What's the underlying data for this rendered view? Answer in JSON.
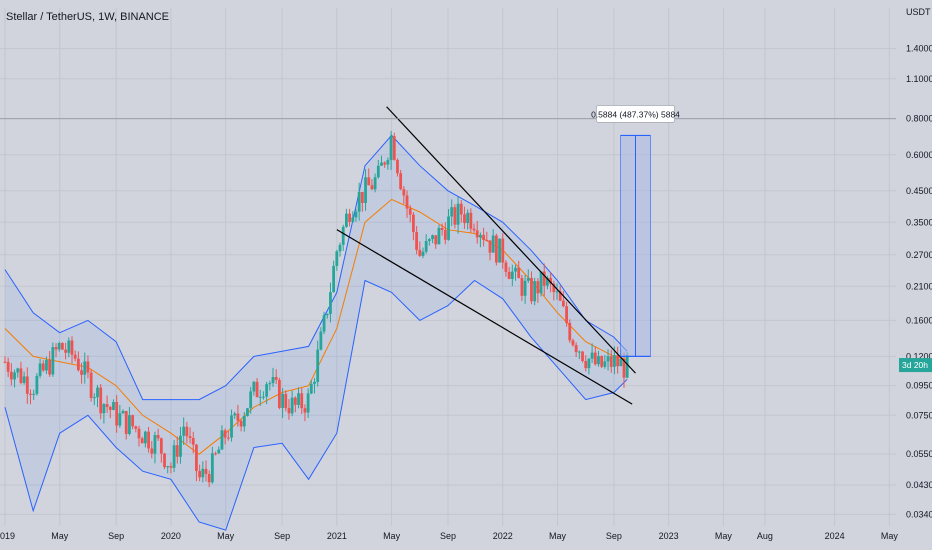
{
  "header": {
    "title": "Stellar / TetherUS, 1W, BINANCE"
  },
  "price_axis": {
    "unit": "USDT",
    "ticks": [
      "1.4000",
      "1.1000",
      "0.8000",
      "0.6000",
      "0.4500",
      "0.3500",
      "0.2700",
      "0.2100",
      "0.1600",
      "0.1200",
      "0.0950",
      "0.0750",
      "0.0550",
      "0.0430",
      "0.0340"
    ],
    "tick_values": [
      1.4,
      1.1,
      0.8,
      0.6,
      0.45,
      0.35,
      0.27,
      0.21,
      0.16,
      0.12,
      0.095,
      0.075,
      0.055,
      0.043,
      0.034
    ],
    "scale": "log",
    "countdown_label": "3d 20h"
  },
  "time_axis": {
    "labels": [
      "2019",
      "May",
      "Sep",
      "2020",
      "May",
      "Sep",
      "2021",
      "May",
      "Sep",
      "2022",
      "May",
      "Sep",
      "2023",
      "May",
      "Aug",
      "2024",
      "May"
    ],
    "values": [
      2019.0,
      2019.33,
      2019.67,
      2020.0,
      2020.33,
      2020.67,
      2021.0,
      2021.33,
      2021.67,
      2022.0,
      2022.33,
      2022.67,
      2023.0,
      2023.33,
      2023.58,
      2024.0,
      2024.33
    ]
  },
  "measure": {
    "label": "0.5884 (487.37%) 5884",
    "from_price": 0.12,
    "to_price": 0.7,
    "x": 2022.8
  },
  "colors": {
    "background": "#d1d4dc",
    "grid": "#c2c6cf",
    "up": "#26a69a",
    "down": "#ef5350",
    "band": "#2962ff",
    "ma": "#f57c00",
    "trend": "#000000",
    "measure_fill": "#aab8e6",
    "measure_line": "#2962ff"
  },
  "chart_data": {
    "type": "candlestick",
    "title": "Stellar / TetherUS, 1W, BINANCE",
    "ylabel": "USDT",
    "y_scale": "log",
    "ylim": [
      0.031,
      1.65
    ],
    "xlim": [
      2018.97,
      2024.37
    ],
    "series": [
      {
        "name": "XLM/USDT weekly close (approx)",
        "x": [
          2019.0,
          2019.08,
          2019.17,
          2019.25,
          2019.33,
          2019.42,
          2019.5,
          2019.58,
          2019.67,
          2019.75,
          2019.83,
          2019.92,
          2020.0,
          2020.08,
          2020.17,
          2020.25,
          2020.33,
          2020.42,
          2020.5,
          2020.58,
          2020.67,
          2020.75,
          2020.83,
          2020.92,
          2021.0,
          2021.08,
          2021.17,
          2021.25,
          2021.33,
          2021.42,
          2021.5,
          2021.58,
          2021.67,
          2021.75,
          2021.83,
          2021.92,
          2022.0,
          2022.08,
          2022.17,
          2022.25,
          2022.33,
          2022.42,
          2022.5,
          2022.58,
          2022.67,
          2022.75
        ],
        "close": [
          0.115,
          0.105,
          0.095,
          0.11,
          0.13,
          0.12,
          0.1,
          0.085,
          0.075,
          0.07,
          0.065,
          0.06,
          0.05,
          0.07,
          0.045,
          0.05,
          0.065,
          0.075,
          0.09,
          0.1,
          0.085,
          0.08,
          0.085,
          0.15,
          0.28,
          0.4,
          0.45,
          0.5,
          0.7,
          0.4,
          0.27,
          0.3,
          0.35,
          0.38,
          0.36,
          0.3,
          0.27,
          0.22,
          0.2,
          0.22,
          0.19,
          0.14,
          0.12,
          0.11,
          0.115,
          0.11
        ]
      },
      {
        "name": "Bollinger upper band (approx)",
        "x": [
          2019.0,
          2019.17,
          2019.33,
          2019.5,
          2019.67,
          2019.83,
          2020.0,
          2020.17,
          2020.33,
          2020.5,
          2020.67,
          2020.83,
          2021.0,
          2021.17,
          2021.33,
          2021.5,
          2021.67,
          2021.83,
          2022.0,
          2022.17,
          2022.33,
          2022.5,
          2022.67,
          2022.75
        ],
        "values": [
          0.24,
          0.17,
          0.145,
          0.16,
          0.135,
          0.085,
          0.085,
          0.085,
          0.095,
          0.12,
          0.125,
          0.13,
          0.2,
          0.55,
          0.7,
          0.55,
          0.45,
          0.4,
          0.35,
          0.28,
          0.22,
          0.16,
          0.14,
          0.125
        ]
      },
      {
        "name": "Moving average (approx)",
        "x": [
          2019.0,
          2019.17,
          2019.33,
          2019.5,
          2019.67,
          2019.83,
          2020.0,
          2020.17,
          2020.33,
          2020.5,
          2020.67,
          2020.83,
          2021.0,
          2021.17,
          2021.33,
          2021.5,
          2021.67,
          2021.83,
          2022.0,
          2022.17,
          2022.33,
          2022.5,
          2022.67,
          2022.75
        ],
        "values": [
          0.15,
          0.12,
          0.115,
          0.11,
          0.095,
          0.075,
          0.065,
          0.055,
          0.065,
          0.08,
          0.09,
          0.095,
          0.15,
          0.35,
          0.42,
          0.38,
          0.33,
          0.32,
          0.28,
          0.22,
          0.17,
          0.135,
          0.12,
          0.117
        ]
      },
      {
        "name": "Bollinger lower band (approx)",
        "x": [
          2019.0,
          2019.17,
          2019.33,
          2019.5,
          2019.67,
          2019.83,
          2020.0,
          2020.17,
          2020.33,
          2020.5,
          2020.67,
          2020.83,
          2021.0,
          2021.17,
          2021.33,
          2021.5,
          2021.67,
          2021.83,
          2022.0,
          2022.17,
          2022.33,
          2022.5,
          2022.67,
          2022.75
        ],
        "values": [
          0.08,
          0.035,
          0.065,
          0.075,
          0.058,
          0.048,
          0.045,
          0.032,
          0.03,
          0.058,
          0.06,
          0.045,
          0.065,
          0.22,
          0.2,
          0.16,
          0.18,
          0.22,
          0.19,
          0.14,
          0.11,
          0.085,
          0.09,
          0.1
        ]
      }
    ],
    "trend_lines": [
      {
        "from": [
          2021.3,
          0.88
        ],
        "to": [
          2022.8,
          0.105
        ]
      },
      {
        "from": [
          2021.0,
          0.33
        ],
        "to": [
          2022.78,
          0.082
        ]
      }
    ]
  }
}
